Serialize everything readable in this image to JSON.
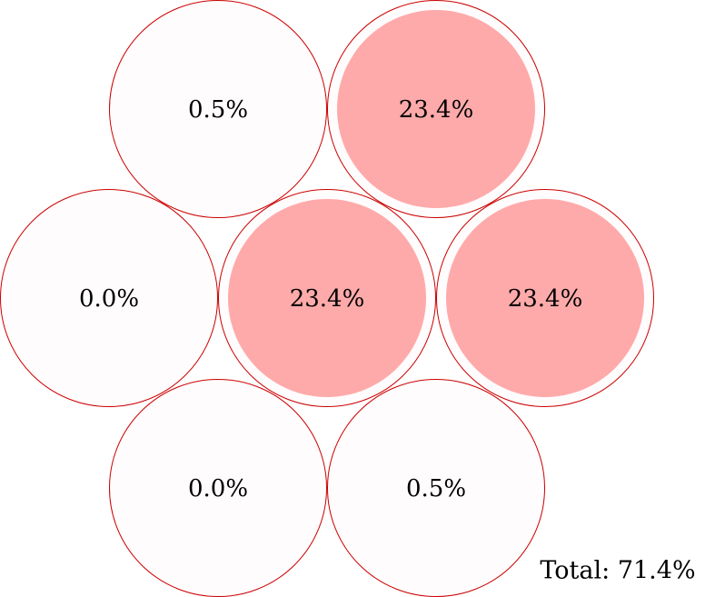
{
  "cells": [
    {
      "label": "0.5%",
      "highlighted": false
    },
    {
      "label": "23.4%",
      "highlighted": true
    },
    {
      "label": "0.0%",
      "highlighted": false
    },
    {
      "label": "23.4%",
      "highlighted": true
    },
    {
      "label": "23.4%",
      "highlighted": true
    },
    {
      "label": "0.0%",
      "highlighted": false
    },
    {
      "label": "0.5%",
      "highlighted": false
    }
  ],
  "total": "Total: 71.4%"
}
